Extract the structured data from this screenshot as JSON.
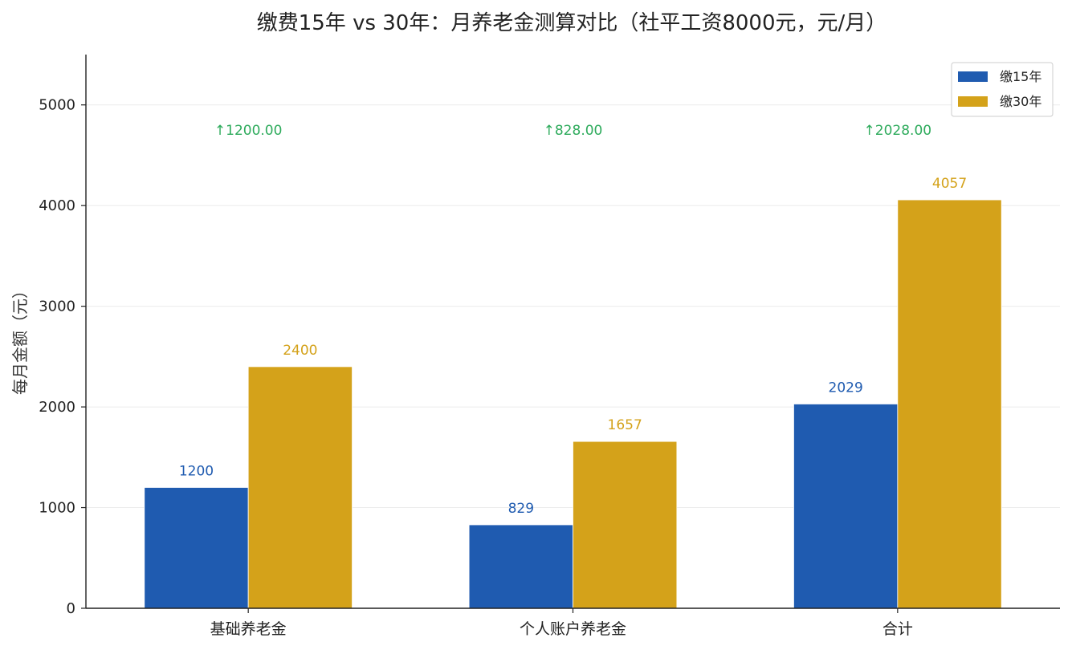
{
  "chart_data": {
    "type": "bar",
    "title": "缴费15年 vs 30年：月养老金测算对比（社平工资8000元，元/月）",
    "xlabel": "",
    "ylabel": "每月金额（元）",
    "categories": [
      "基础养老金",
      "个人账户养老金",
      "合计"
    ],
    "series": [
      {
        "name": "缴15年",
        "color": "#1f5bb0",
        "values": [
          1200,
          829,
          2029
        ]
      },
      {
        "name": "缴30年",
        "color": "#d4a21a",
        "values": [
          2400,
          1657,
          4057
        ]
      }
    ],
    "value_labels": [
      [
        "1200",
        "829",
        "2029"
      ],
      [
        "2400",
        "1657",
        "4057"
      ]
    ],
    "difference_labels": [
      "↑1200.00",
      "↑828.00",
      "↑2028.00"
    ],
    "difference_color": "#2eab5c",
    "ylim": [
      0,
      5500
    ],
    "yticks": [
      0,
      1000,
      2000,
      3000,
      4000,
      5000
    ],
    "grid": true,
    "legend_position": "top-right"
  }
}
